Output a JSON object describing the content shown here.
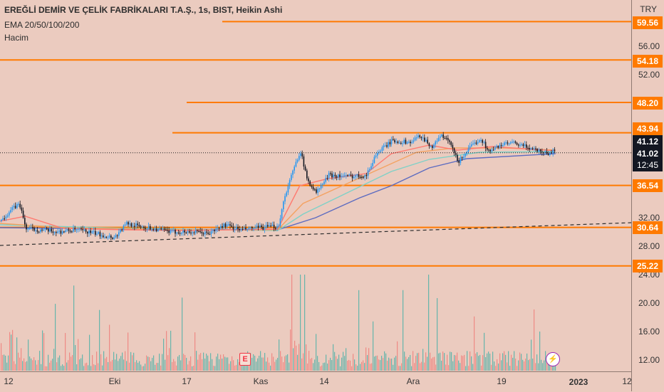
{
  "legend": {
    "symbol_line": "EREĞLİ DEMİR VE ÇELİK FABRİKALARI T.A.Ş., 1s, BIST, Heikin Ashi",
    "indicator_ema": "EMA 20/50/100/200",
    "indicator_volume": "Hacim"
  },
  "price_axis": {
    "currency": "TRY",
    "ticks": [
      "56.00",
      "52.00",
      "32.00",
      "28.00",
      "24.00",
      "20.00",
      "16.00",
      "12.00"
    ],
    "level_labels": [
      "59.56",
      "54.18",
      "48.20",
      "43.94",
      "36.54",
      "30.64",
      "25.22"
    ],
    "current_price": "41.12",
    "last_close": "41.02",
    "countdown": "12:45"
  },
  "time_axis": {
    "labels": [
      "12",
      "Eki",
      "17",
      "Kas",
      "14",
      "Ara",
      "19",
      "2023",
      "12"
    ]
  },
  "markers": {
    "earnings_label": "E",
    "event_icon": "lightning-icon"
  },
  "colors": {
    "background": "#ebcbbf",
    "level_line": "#ff7a00",
    "candle_up": "#2196f3",
    "candle_down": "#131722",
    "ema20": "#ff7a70",
    "ema50": "#f4a261",
    "ema100": "#7fd1c7",
    "ema200": "#5c6bc0",
    "vol_up": "#4fb2a7",
    "vol_down": "#ef7f7a"
  },
  "chart_data": {
    "type": "candlestick",
    "title": "EREĞLİ DEMİR VE ÇELİK FABRİKALARI T.A.Ş., 1s, BIST, Heikin Ashi",
    "ylim": [
      10.5,
      63
    ],
    "y_ticks": [
      12,
      16,
      20,
      24,
      28,
      32,
      52,
      56
    ],
    "horizontal_levels": [
      59.56,
      54.18,
      48.2,
      43.94,
      36.54,
      30.64,
      25.22
    ],
    "level_starts": [
      "early",
      "left",
      "mid",
      "mid",
      "left",
      "left",
      "left"
    ],
    "trendline": [
      {
        "x": 0,
        "y": 28.1
      },
      {
        "x": 100,
        "y": 31.3
      }
    ],
    "current_price": 41.12,
    "last_close": 41.02,
    "x_labels": [
      "12",
      "Eki",
      "17",
      "Kas",
      "14",
      "Ara",
      "19",
      "2023",
      "12"
    ],
    "price_path": [
      {
        "x": 0,
        "y": 31.5
      },
      {
        "x": 1.5,
        "y": 33.0
      },
      {
        "x": 3,
        "y": 34.0
      },
      {
        "x": 4,
        "y": 30.5
      },
      {
        "x": 7,
        "y": 30.2
      },
      {
        "x": 9,
        "y": 30.0
      },
      {
        "x": 12,
        "y": 30.3
      },
      {
        "x": 14,
        "y": 30.0
      },
      {
        "x": 16.5,
        "y": 29.5
      },
      {
        "x": 18,
        "y": 29.2
      },
      {
        "x": 20,
        "y": 31.2
      },
      {
        "x": 22,
        "y": 30.8
      },
      {
        "x": 24,
        "y": 30.5
      },
      {
        "x": 27,
        "y": 30.0
      },
      {
        "x": 30,
        "y": 30.0
      },
      {
        "x": 33,
        "y": 29.8
      },
      {
        "x": 35.5,
        "y": 31.0
      },
      {
        "x": 38,
        "y": 30.3
      },
      {
        "x": 41,
        "y": 30.6
      },
      {
        "x": 44,
        "y": 30.8
      },
      {
        "x": 45,
        "y": 35.0
      },
      {
        "x": 46.5,
        "y": 39.0
      },
      {
        "x": 47.5,
        "y": 41.5
      },
      {
        "x": 48.5,
        "y": 37.5
      },
      {
        "x": 50,
        "y": 35.5
      },
      {
        "x": 52,
        "y": 38.0
      },
      {
        "x": 55,
        "y": 37.8
      },
      {
        "x": 58,
        "y": 38.0
      },
      {
        "x": 59.5,
        "y": 41.0
      },
      {
        "x": 62,
        "y": 42.8
      },
      {
        "x": 65,
        "y": 42.6
      },
      {
        "x": 66.5,
        "y": 43.6
      },
      {
        "x": 68.5,
        "y": 41.8
      },
      {
        "x": 69.5,
        "y": 43.6
      },
      {
        "x": 71,
        "y": 42.8
      },
      {
        "x": 72.5,
        "y": 39.8
      },
      {
        "x": 74,
        "y": 41.5
      },
      {
        "x": 76,
        "y": 43.2
      },
      {
        "x": 77.5,
        "y": 41.2
      },
      {
        "x": 79,
        "y": 42.2
      },
      {
        "x": 81,
        "y": 42.5
      },
      {
        "x": 84,
        "y": 41.8
      },
      {
        "x": 87,
        "y": 41.0
      },
      {
        "x": 88,
        "y": 41.8
      }
    ],
    "ema_20": [
      {
        "x": 0,
        "y": 31.5
      },
      {
        "x": 4,
        "y": 32.2
      },
      {
        "x": 10,
        "y": 30.5
      },
      {
        "x": 20,
        "y": 30.3
      },
      {
        "x": 30,
        "y": 30.2
      },
      {
        "x": 44,
        "y": 30.4
      },
      {
        "x": 47.5,
        "y": 36.5
      },
      {
        "x": 52,
        "y": 37.5
      },
      {
        "x": 58,
        "y": 38.2
      },
      {
        "x": 62,
        "y": 41.0
      },
      {
        "x": 68,
        "y": 42.2
      },
      {
        "x": 72.5,
        "y": 41.5
      },
      {
        "x": 78,
        "y": 42.0
      },
      {
        "x": 88,
        "y": 41.4
      }
    ],
    "ema_50": [
      {
        "x": 0,
        "y": 31.2
      },
      {
        "x": 10,
        "y": 30.6
      },
      {
        "x": 30,
        "y": 30.3
      },
      {
        "x": 44,
        "y": 30.3
      },
      {
        "x": 48,
        "y": 34.0
      },
      {
        "x": 55,
        "y": 36.8
      },
      {
        "x": 60,
        "y": 38.8
      },
      {
        "x": 66,
        "y": 41.2
      },
      {
        "x": 72,
        "y": 41.8
      },
      {
        "x": 80,
        "y": 41.8
      },
      {
        "x": 88,
        "y": 41.5
      }
    ],
    "ema_100": [
      {
        "x": 0,
        "y": 31.0
      },
      {
        "x": 20,
        "y": 30.5
      },
      {
        "x": 44,
        "y": 30.2
      },
      {
        "x": 48,
        "y": 32.5
      },
      {
        "x": 55,
        "y": 35.5
      },
      {
        "x": 62,
        "y": 38.5
      },
      {
        "x": 68,
        "y": 40.2
      },
      {
        "x": 76,
        "y": 41.2
      },
      {
        "x": 88,
        "y": 41.3
      }
    ],
    "ema_200": [
      {
        "x": 0,
        "y": 30.6
      },
      {
        "x": 20,
        "y": 30.4
      },
      {
        "x": 44,
        "y": 30.3
      },
      {
        "x": 50,
        "y": 32.0
      },
      {
        "x": 57,
        "y": 34.8
      },
      {
        "x": 62,
        "y": 36.5
      },
      {
        "x": 68,
        "y": 39.0
      },
      {
        "x": 74,
        "y": 40.3
      },
      {
        "x": 88,
        "y": 41.0
      }
    ]
  }
}
